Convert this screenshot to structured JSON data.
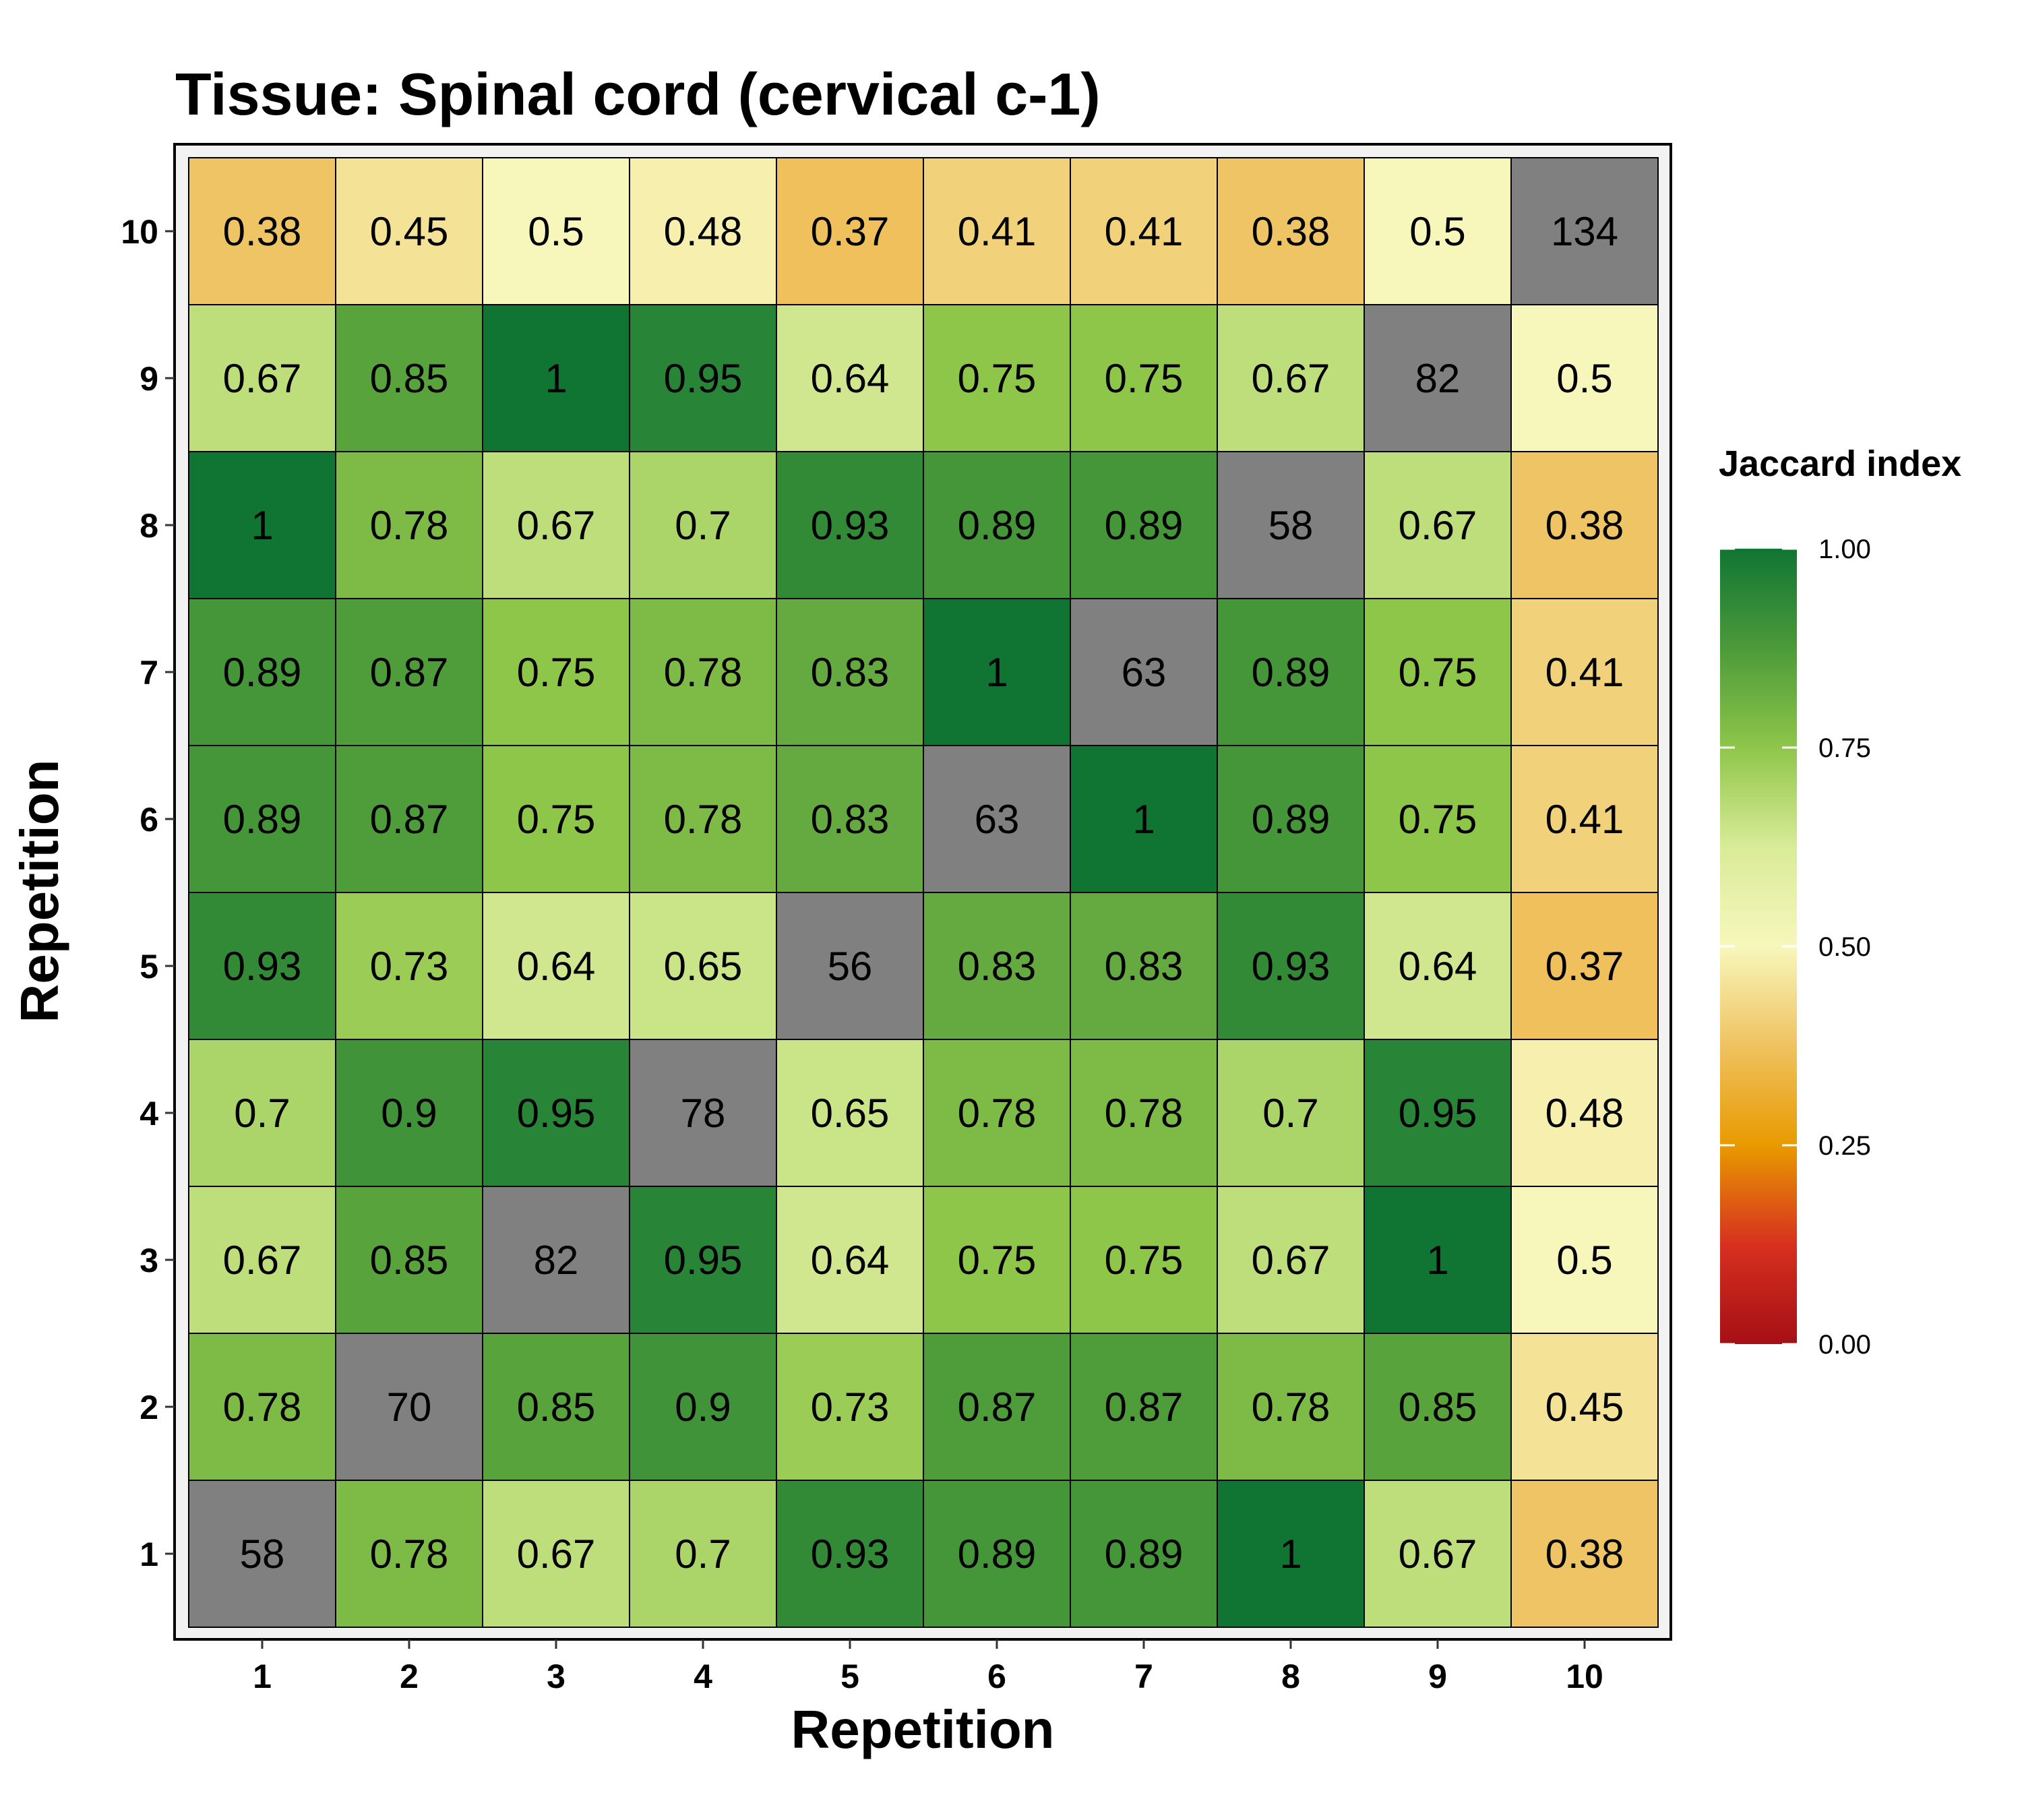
{
  "chart_data": {
    "type": "heatmap",
    "title": "Tissue: Spinal cord (cervical c-1)",
    "xlabel": "Repetition",
    "ylabel": "Repetition",
    "x_categories": [
      "1",
      "2",
      "3",
      "4",
      "5",
      "6",
      "7",
      "8",
      "9",
      "10"
    ],
    "y_categories": [
      "1",
      "2",
      "3",
      "4",
      "5",
      "6",
      "7",
      "8",
      "9",
      "10"
    ],
    "diagonal_color": "#808080",
    "grid": false,
    "legend": {
      "title": "Jaccard index",
      "position": "right",
      "min": 0,
      "max": 1,
      "ticks": [
        0,
        0.25,
        0.5,
        0.75,
        1
      ],
      "tick_labels": [
        "0.00",
        "0.25",
        "0.50",
        "0.75",
        "1.00"
      ],
      "colors": [
        {
          "stop": 0.0,
          "color": "#a50f15"
        },
        {
          "stop": 0.125,
          "color": "#d7301f"
        },
        {
          "stop": 0.25,
          "color": "#e89a00"
        },
        {
          "stop": 0.375,
          "color": "#efc260"
        },
        {
          "stop": 0.5,
          "color": "#f7f7bc"
        },
        {
          "stop": 0.625,
          "color": "#d9eb98"
        },
        {
          "stop": 0.75,
          "color": "#8ec64a"
        },
        {
          "stop": 0.875,
          "color": "#4c9a3a"
        },
        {
          "stop": 1.0,
          "color": "#107533"
        }
      ]
    },
    "rows": [
      {
        "y": "1",
        "values": [
          58,
          0.78,
          0.67,
          0.7,
          0.93,
          0.89,
          0.89,
          1,
          0.67,
          0.38
        ],
        "labels": [
          "58",
          "0.78",
          "0.67",
          "0.7",
          "0.93",
          "0.89",
          "0.89",
          "1",
          "0.67",
          "0.38"
        ]
      },
      {
        "y": "2",
        "values": [
          0.78,
          70,
          0.85,
          0.9,
          0.73,
          0.87,
          0.87,
          0.78,
          0.85,
          0.45
        ],
        "labels": [
          "0.78",
          "70",
          "0.85",
          "0.9",
          "0.73",
          "0.87",
          "0.87",
          "0.78",
          "0.85",
          "0.45"
        ]
      },
      {
        "y": "3",
        "values": [
          0.67,
          0.85,
          82,
          0.95,
          0.64,
          0.75,
          0.75,
          0.67,
          1,
          0.5
        ],
        "labels": [
          "0.67",
          "0.85",
          "82",
          "0.95",
          "0.64",
          "0.75",
          "0.75",
          "0.67",
          "1",
          "0.5"
        ]
      },
      {
        "y": "4",
        "values": [
          0.7,
          0.9,
          0.95,
          78,
          0.65,
          0.78,
          0.78,
          0.7,
          0.95,
          0.48
        ],
        "labels": [
          "0.7",
          "0.9",
          "0.95",
          "78",
          "0.65",
          "0.78",
          "0.78",
          "0.7",
          "0.95",
          "0.48"
        ]
      },
      {
        "y": "5",
        "values": [
          0.93,
          0.73,
          0.64,
          0.65,
          56,
          0.83,
          0.83,
          0.93,
          0.64,
          0.37
        ],
        "labels": [
          "0.93",
          "0.73",
          "0.64",
          "0.65",
          "56",
          "0.83",
          "0.83",
          "0.93",
          "0.64",
          "0.37"
        ]
      },
      {
        "y": "6",
        "values": [
          0.89,
          0.87,
          0.75,
          0.78,
          0.83,
          63,
          1,
          0.89,
          0.75,
          0.41
        ],
        "labels": [
          "0.89",
          "0.87",
          "0.75",
          "0.78",
          "0.83",
          "63",
          "1",
          "0.89",
          "0.75",
          "0.41"
        ]
      },
      {
        "y": "7",
        "values": [
          0.89,
          0.87,
          0.75,
          0.78,
          0.83,
          1,
          63,
          0.89,
          0.75,
          0.41
        ],
        "labels": [
          "0.89",
          "0.87",
          "0.75",
          "0.78",
          "0.83",
          "1",
          "63",
          "0.89",
          "0.75",
          "0.41"
        ]
      },
      {
        "y": "8",
        "values": [
          1,
          0.78,
          0.67,
          0.7,
          0.93,
          0.89,
          0.89,
          58,
          0.67,
          0.38
        ],
        "labels": [
          "1",
          "0.78",
          "0.67",
          "0.7",
          "0.93",
          "0.89",
          "0.89",
          "58",
          "0.67",
          "0.38"
        ]
      },
      {
        "y": "9",
        "values": [
          0.67,
          0.85,
          1,
          0.95,
          0.64,
          0.75,
          0.75,
          0.67,
          82,
          0.5
        ],
        "labels": [
          "0.67",
          "0.85",
          "1",
          "0.95",
          "0.64",
          "0.75",
          "0.75",
          "0.67",
          "82",
          "0.5"
        ]
      },
      {
        "y": "10",
        "values": [
          0.38,
          0.45,
          0.5,
          0.48,
          0.37,
          0.41,
          0.41,
          0.38,
          0.5,
          134
        ],
        "labels": [
          "0.38",
          "0.45",
          "0.5",
          "0.48",
          "0.37",
          "0.41",
          "0.41",
          "0.38",
          "0.5",
          "134"
        ]
      }
    ]
  }
}
